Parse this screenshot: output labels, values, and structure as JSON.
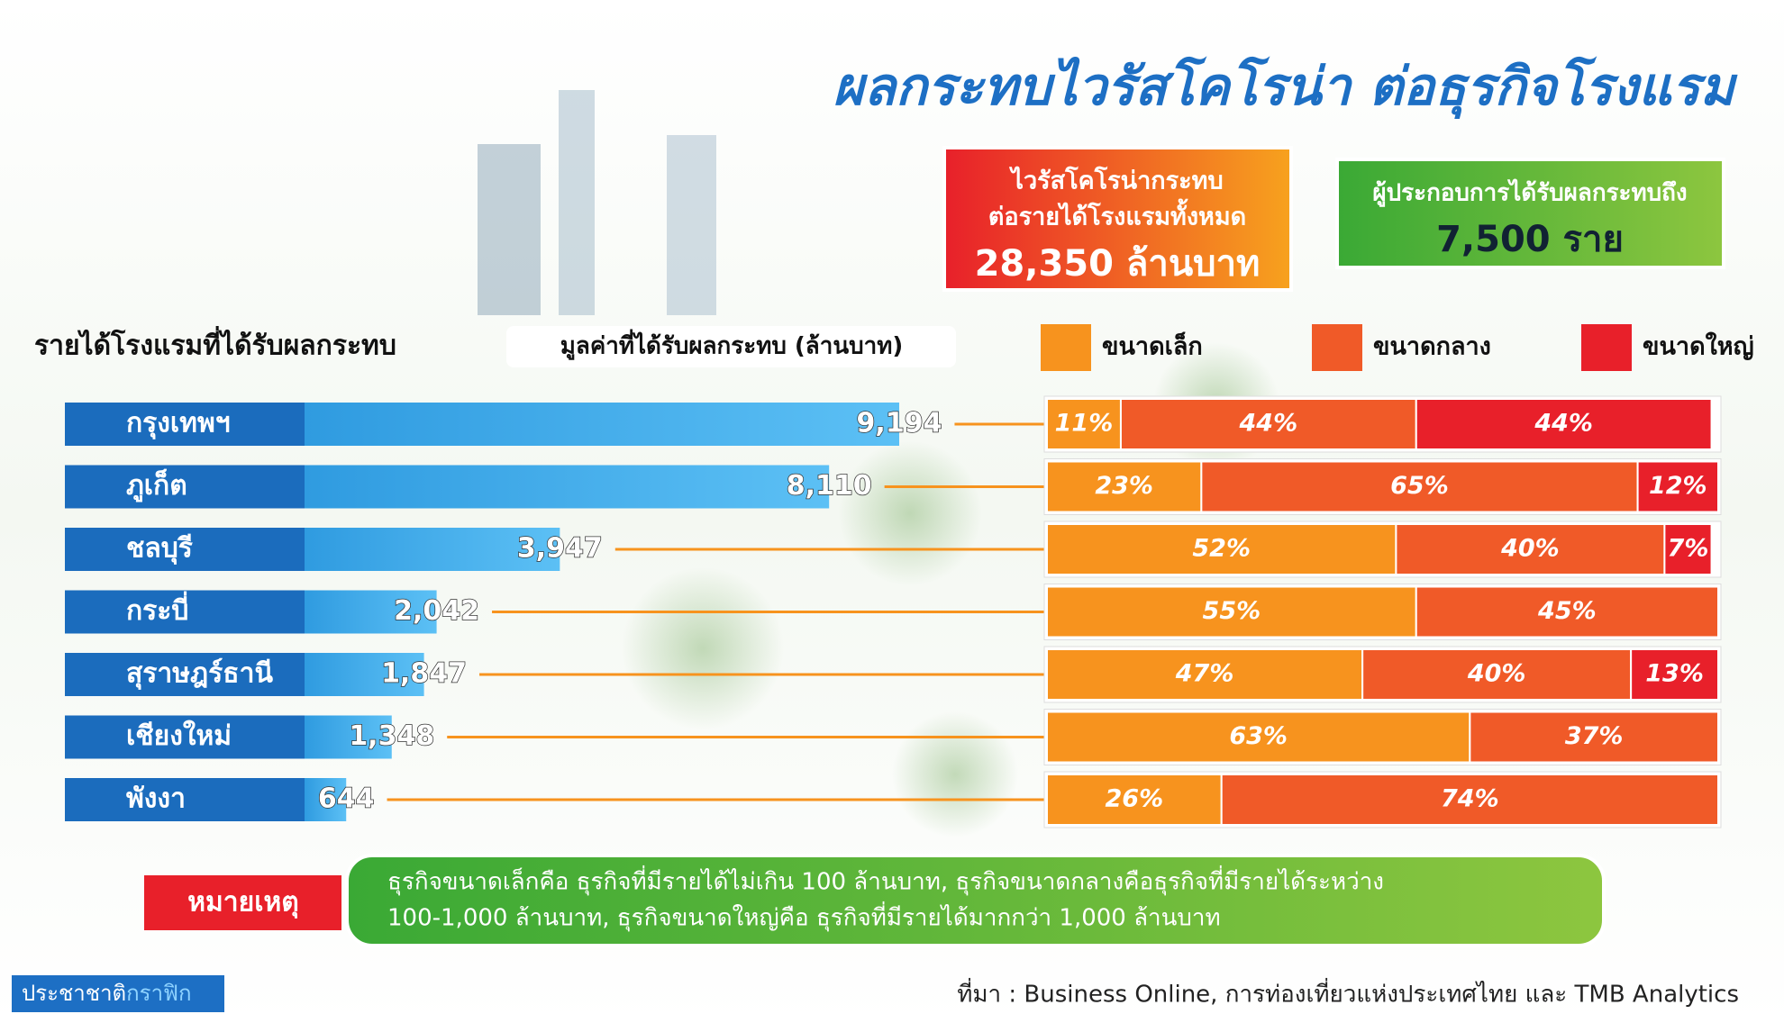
{
  "title": "ผลกระทบไวรัสโคโรน่า ต่อธุรกิจโรงแรม",
  "impact_box": {
    "lines": [
      "ไวรัสโคโรน่ากระทบ",
      "ต่อรายได้โรงแรมทั้งหมด"
    ],
    "amount": "28,350 ล้านบาท"
  },
  "operators_box": {
    "label": "ผู้ประกอบการได้รับผลกระทบถึง",
    "amount": "7,500 ราย"
  },
  "chart_data": [
    {
      "type": "bar",
      "orientation": "horizontal",
      "title": "รายได้โรงแรมที่ได้รับผลกระทบ",
      "value_title": "มูลค่าที่ได้รับผลกระทบ  (ล้านบาท)",
      "categories": [
        "กรุงเทพฯ",
        "ภูเก็ต",
        "ชลบุรี",
        "กระบี่",
        "สุราษฎร์ธานี",
        "เชียงใหม่",
        "พังงา"
      ],
      "values": [
        9194,
        8110,
        3947,
        2042,
        1847,
        1348,
        644
      ],
      "value_labels": [
        "9,194",
        "8,110",
        "3,947",
        "2,042",
        "1,847",
        "1,348",
        "644"
      ],
      "color": "#1d86d6"
    },
    {
      "type": "stacked_bar",
      "orientation": "horizontal",
      "xlim": [
        0,
        100
      ],
      "series": [
        {
          "name": "ขนาดเล็ก",
          "color": "#f7931e",
          "values": [
            11,
            23,
            52,
            55,
            47,
            63,
            26
          ],
          "value_labels": [
            "11%",
            "23%",
            "52%",
            "55%",
            "47%",
            "63%",
            "26%"
          ]
        },
        {
          "name": "ขนาดกลาง",
          "color": "#f05a28",
          "values": [
            44,
            65,
            40,
            45,
            40,
            37,
            74
          ],
          "value_labels": [
            "44%",
            "65%",
            "40%",
            "45%",
            "40%",
            "37%",
            "74%"
          ]
        },
        {
          "name": "ขนาดใหญ่",
          "color": "#e8202a",
          "values": [
            44,
            12,
            7,
            null,
            13,
            null,
            null
          ],
          "value_labels": [
            "44%",
            "12%",
            "7%",
            null,
            "13%",
            null,
            null
          ]
        }
      ]
    }
  ],
  "note": {
    "label": "หมายเหตุ",
    "lines": [
      "ธุรกิจขนาดเล็กคือ ธุรกิจที่มีรายได้ไม่เกิน 100 ล้านบาท, ธุรกิจขนาดกลางคือธุรกิจที่มีรายได้ระหว่าง",
      "100-1,000 ล้านบาท, ธุรกิจขนาดใหญ่คือ ธุรกิจที่มีรายได้มากกว่า 1,000 ล้านบาท"
    ]
  },
  "source": "ที่มา : Business Online, การท่องเที่ยวแห่งประเทศไทย และ TMB Analytics",
  "brand": [
    "ประชาชาติ",
    "กราฟิก"
  ]
}
